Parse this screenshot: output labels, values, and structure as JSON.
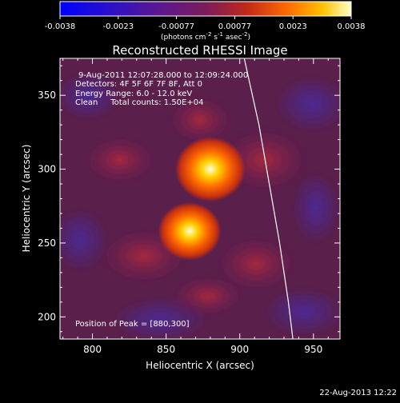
{
  "colorbar": {
    "ticks": [
      "-0.0038",
      "-0.0023",
      "-0.00077",
      "0.00077",
      "0.0023",
      "0.0038"
    ],
    "units_text": "(photons cm",
    "units_exp1": "-2",
    "units_mid": " s",
    "units_exp2": "-1",
    "units_tail": " asec",
    "units_exp3": "-2",
    "units_close": ")",
    "range": [
      -0.0038,
      0.0038
    ]
  },
  "chart_data": {
    "type": "heatmap",
    "title": "Reconstructed RHESSI Image",
    "xlabel": "Heliocentric X (arcsec)",
    "ylabel": "Heliocentric Y (arcsec)",
    "xlim": [
      778,
      968
    ],
    "ylim": [
      185,
      375
    ],
    "x_ticks": [
      800,
      850,
      900,
      950
    ],
    "y_ticks": [
      200,
      250,
      300,
      350
    ],
    "x_tick_labels": [
      "800",
      "850",
      "900",
      "950"
    ],
    "y_tick_labels": [
      "200",
      "250",
      "300",
      "350"
    ],
    "sources": [
      {
        "x": 880,
        "y": 300,
        "peak": 0.0038
      },
      {
        "x": 866,
        "y": 258,
        "peak": 0.0034
      }
    ],
    "limb": [
      [
        903,
        375
      ],
      [
        913,
        330
      ],
      [
        920,
        290
      ],
      [
        927,
        250
      ],
      [
        933,
        210
      ],
      [
        936,
        185
      ]
    ],
    "annotations": [
      "9-Aug-2011 12:07:28.000 to 12:09:24.000",
      "Detectors: 4F 5F 6F 7F 8F, Att 0",
      "Energy Range: 6.0 - 12.0 keV",
      "Clean     Total counts: 1.50E+04"
    ],
    "peak_label": "Position of Peak = [880,300]"
  },
  "timestamp": "22-Aug-2013 12:22"
}
